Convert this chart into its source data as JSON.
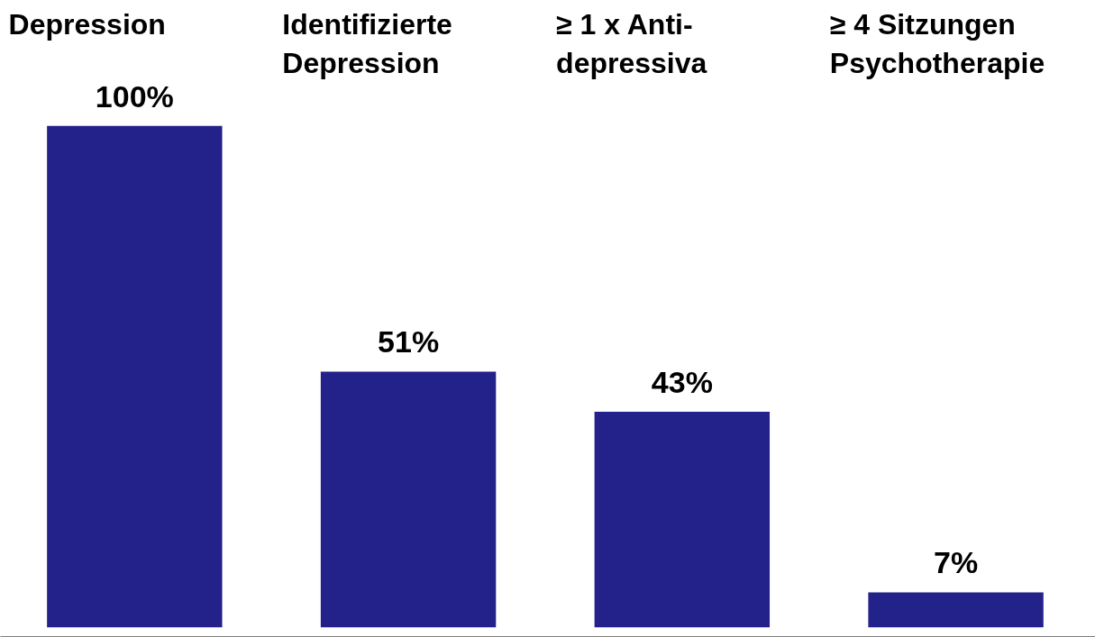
{
  "chart_data": {
    "type": "bar",
    "categories": [
      "Depression",
      "Identifizierte\nDepression",
      "≥ 1 x Anti-\ndepressiva",
      "≥ 4 Sitzungen\nPsychotherapie"
    ],
    "values": [
      100,
      51,
      43,
      7
    ],
    "value_labels": [
      "100%",
      "51%",
      "43%",
      "7%"
    ],
    "color": "#22228a",
    "grid": false
  }
}
